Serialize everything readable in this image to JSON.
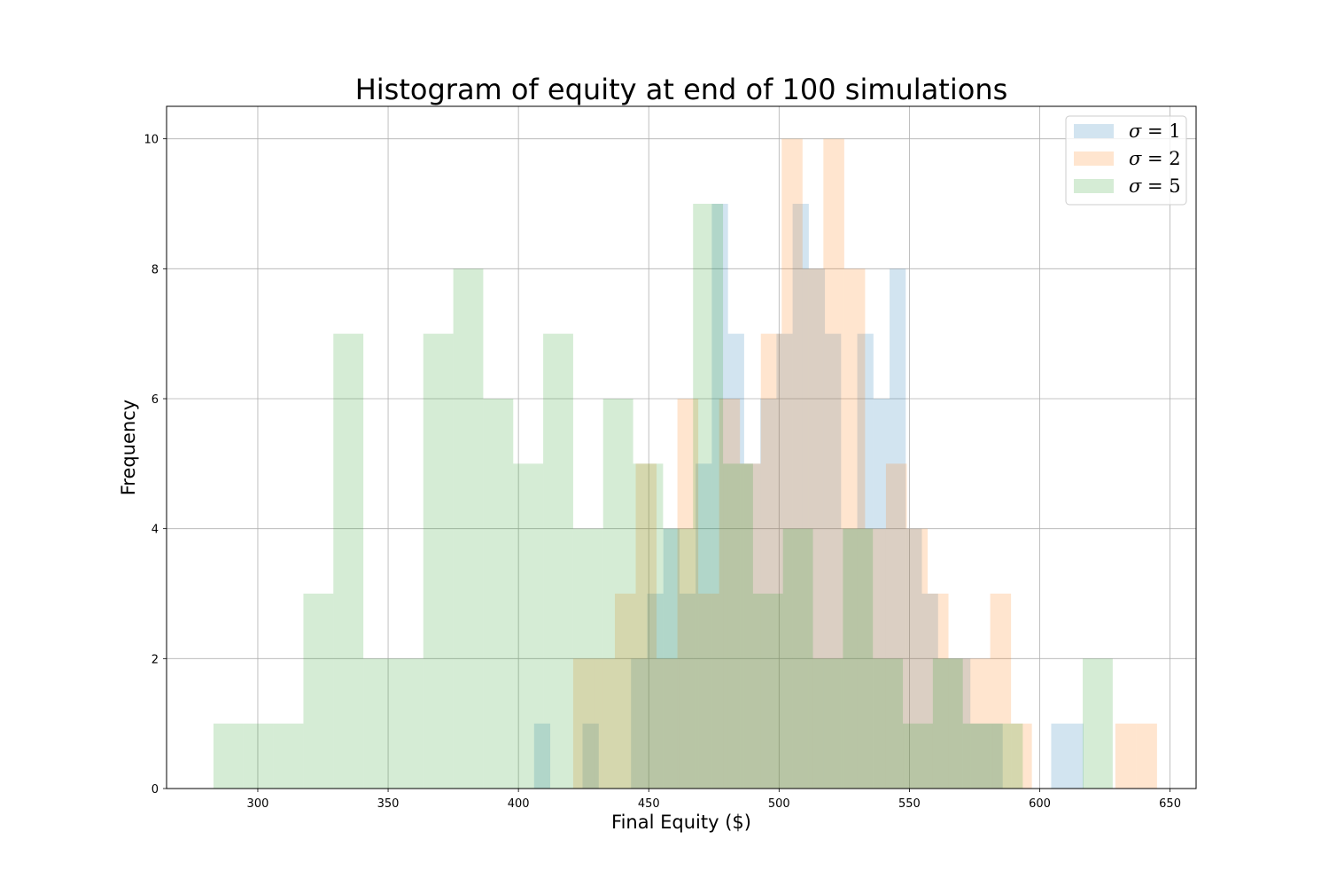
{
  "chart_data": {
    "type": "bar",
    "title": "Histogram of equity at end of 100 simulations",
    "xlabel": "Final Equity ($)",
    "ylabel": "Frequency",
    "xlim": [
      265,
      660
    ],
    "ylim": [
      0,
      10.5
    ],
    "xticks": [
      300,
      350,
      400,
      450,
      500,
      550,
      600,
      650
    ],
    "yticks": [
      0,
      2,
      4,
      6,
      8,
      10
    ],
    "grid": true,
    "legend_position": "top-right",
    "series": [
      {
        "name": "σ = 1",
        "symbol": "σ",
        "value": "1",
        "color": "#1f77b4",
        "opacity": 0.2,
        "bin_edges": [
          406,
          412.2,
          418.4,
          424.6,
          430.8,
          437,
          443.2,
          449.4,
          455.6,
          461.8,
          468,
          474.2,
          480.4,
          486.6,
          492.8,
          499,
          505.2,
          511.4,
          517.6,
          523.8,
          530,
          536.2,
          542.4,
          548.6,
          554.8,
          561,
          567.2,
          573.4,
          579.6,
          585.8,
          592,
          598.2,
          604.4,
          610.6,
          616.8
        ],
        "counts": [
          1,
          0,
          0,
          1,
          0,
          0,
          2,
          3,
          4,
          3,
          5,
          9,
          7,
          5,
          6,
          7,
          9,
          8,
          7,
          4,
          7,
          6,
          8,
          4,
          3,
          2,
          2,
          1,
          1,
          0,
          0,
          0,
          1,
          1
        ]
      },
      {
        "name": "σ = 2",
        "symbol": "σ",
        "value": "2",
        "color": "#ff7f0e",
        "opacity": 0.2,
        "bin_edges": [
          421,
          429,
          437,
          445,
          453,
          461,
          469,
          477,
          485,
          493,
          501,
          509,
          517,
          525,
          533,
          541,
          549,
          557,
          565,
          573,
          581,
          589,
          597,
          605,
          613,
          621,
          629,
          637,
          645
        ],
        "counts": [
          2,
          2,
          3,
          5,
          2,
          6,
          3,
          6,
          5,
          7,
          10,
          8,
          10,
          8,
          4,
          5,
          4,
          3,
          2,
          2,
          3,
          1,
          0,
          0,
          0,
          0,
          1,
          1
        ]
      },
      {
        "name": "σ = 5",
        "symbol": "σ",
        "value": "5",
        "color": "#2ca02c",
        "opacity": 0.2,
        "bin_edges": [
          283,
          294.5,
          306,
          317.5,
          329,
          340.5,
          352,
          363.5,
          375,
          386.5,
          398,
          409.5,
          421,
          432.5,
          444,
          455.5,
          467,
          478.5,
          490,
          501.5,
          513,
          524.5,
          536,
          547.5,
          559,
          570.5,
          582,
          593.5,
          605,
          616.5,
          628
        ],
        "counts": [
          1,
          1,
          1,
          3,
          7,
          2,
          2,
          7,
          8,
          6,
          5,
          7,
          4,
          6,
          5,
          4,
          9,
          5,
          3,
          4,
          2,
          4,
          2,
          1,
          2,
          1,
          1,
          0,
          0,
          2
        ]
      }
    ]
  }
}
